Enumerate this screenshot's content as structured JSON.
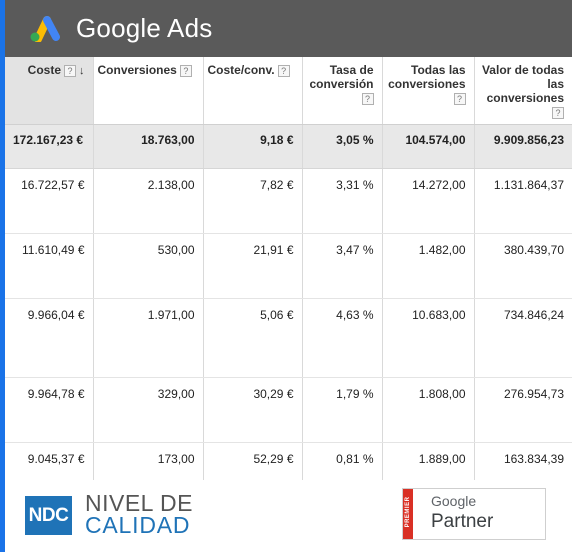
{
  "brand": {
    "name": "Google Ads"
  },
  "table": {
    "columns": [
      {
        "label": "Coste",
        "help": "?",
        "sort": "↓"
      },
      {
        "label": "Conversiones",
        "help": "?"
      },
      {
        "label": "Coste/conv.",
        "help": "?"
      },
      {
        "label": "Tasa de conversión",
        "help": "?"
      },
      {
        "label": "Todas las conversiones",
        "help": "?"
      },
      {
        "label": "Valor de todas las conversiones",
        "help": "?"
      }
    ],
    "total": [
      "172.167,23 €",
      "18.763,00",
      "9,18 €",
      "3,05 %",
      "104.574,00",
      "9.909.856,23"
    ],
    "rows": [
      [
        "16.722,57 €",
        "2.138,00",
        "7,82 €",
        "3,31 %",
        "14.272,00",
        "1.131.864,37"
      ],
      [
        "11.610,49 €",
        "530,00",
        "21,91 €",
        "3,47 %",
        "1.482,00",
        "380.439,70"
      ],
      [
        "9.966,04 €",
        "1.971,00",
        "5,06 €",
        "4,63 %",
        "10.683,00",
        "734.846,24"
      ],
      [
        "9.964,78 €",
        "329,00",
        "30,29 €",
        "1,79 %",
        "1.808,00",
        "276.954,73"
      ],
      [
        "9.045,37 €",
        "173,00",
        "52,29 €",
        "0,81 %",
        "1.889,00",
        "163.834,39"
      ]
    ]
  },
  "footer": {
    "ndc_logo": "NDC",
    "ndc_line1": "NIVEL DE",
    "ndc_line2": "CALIDAD",
    "premier": "PREMIER",
    "partner_google": "Google",
    "partner_label": "Partner"
  },
  "colors": {
    "header_bg": "#5a5a5a",
    "accent": "#1a73e8",
    "ndc_blue": "#1f73b7",
    "premier_red": "#d93025"
  }
}
